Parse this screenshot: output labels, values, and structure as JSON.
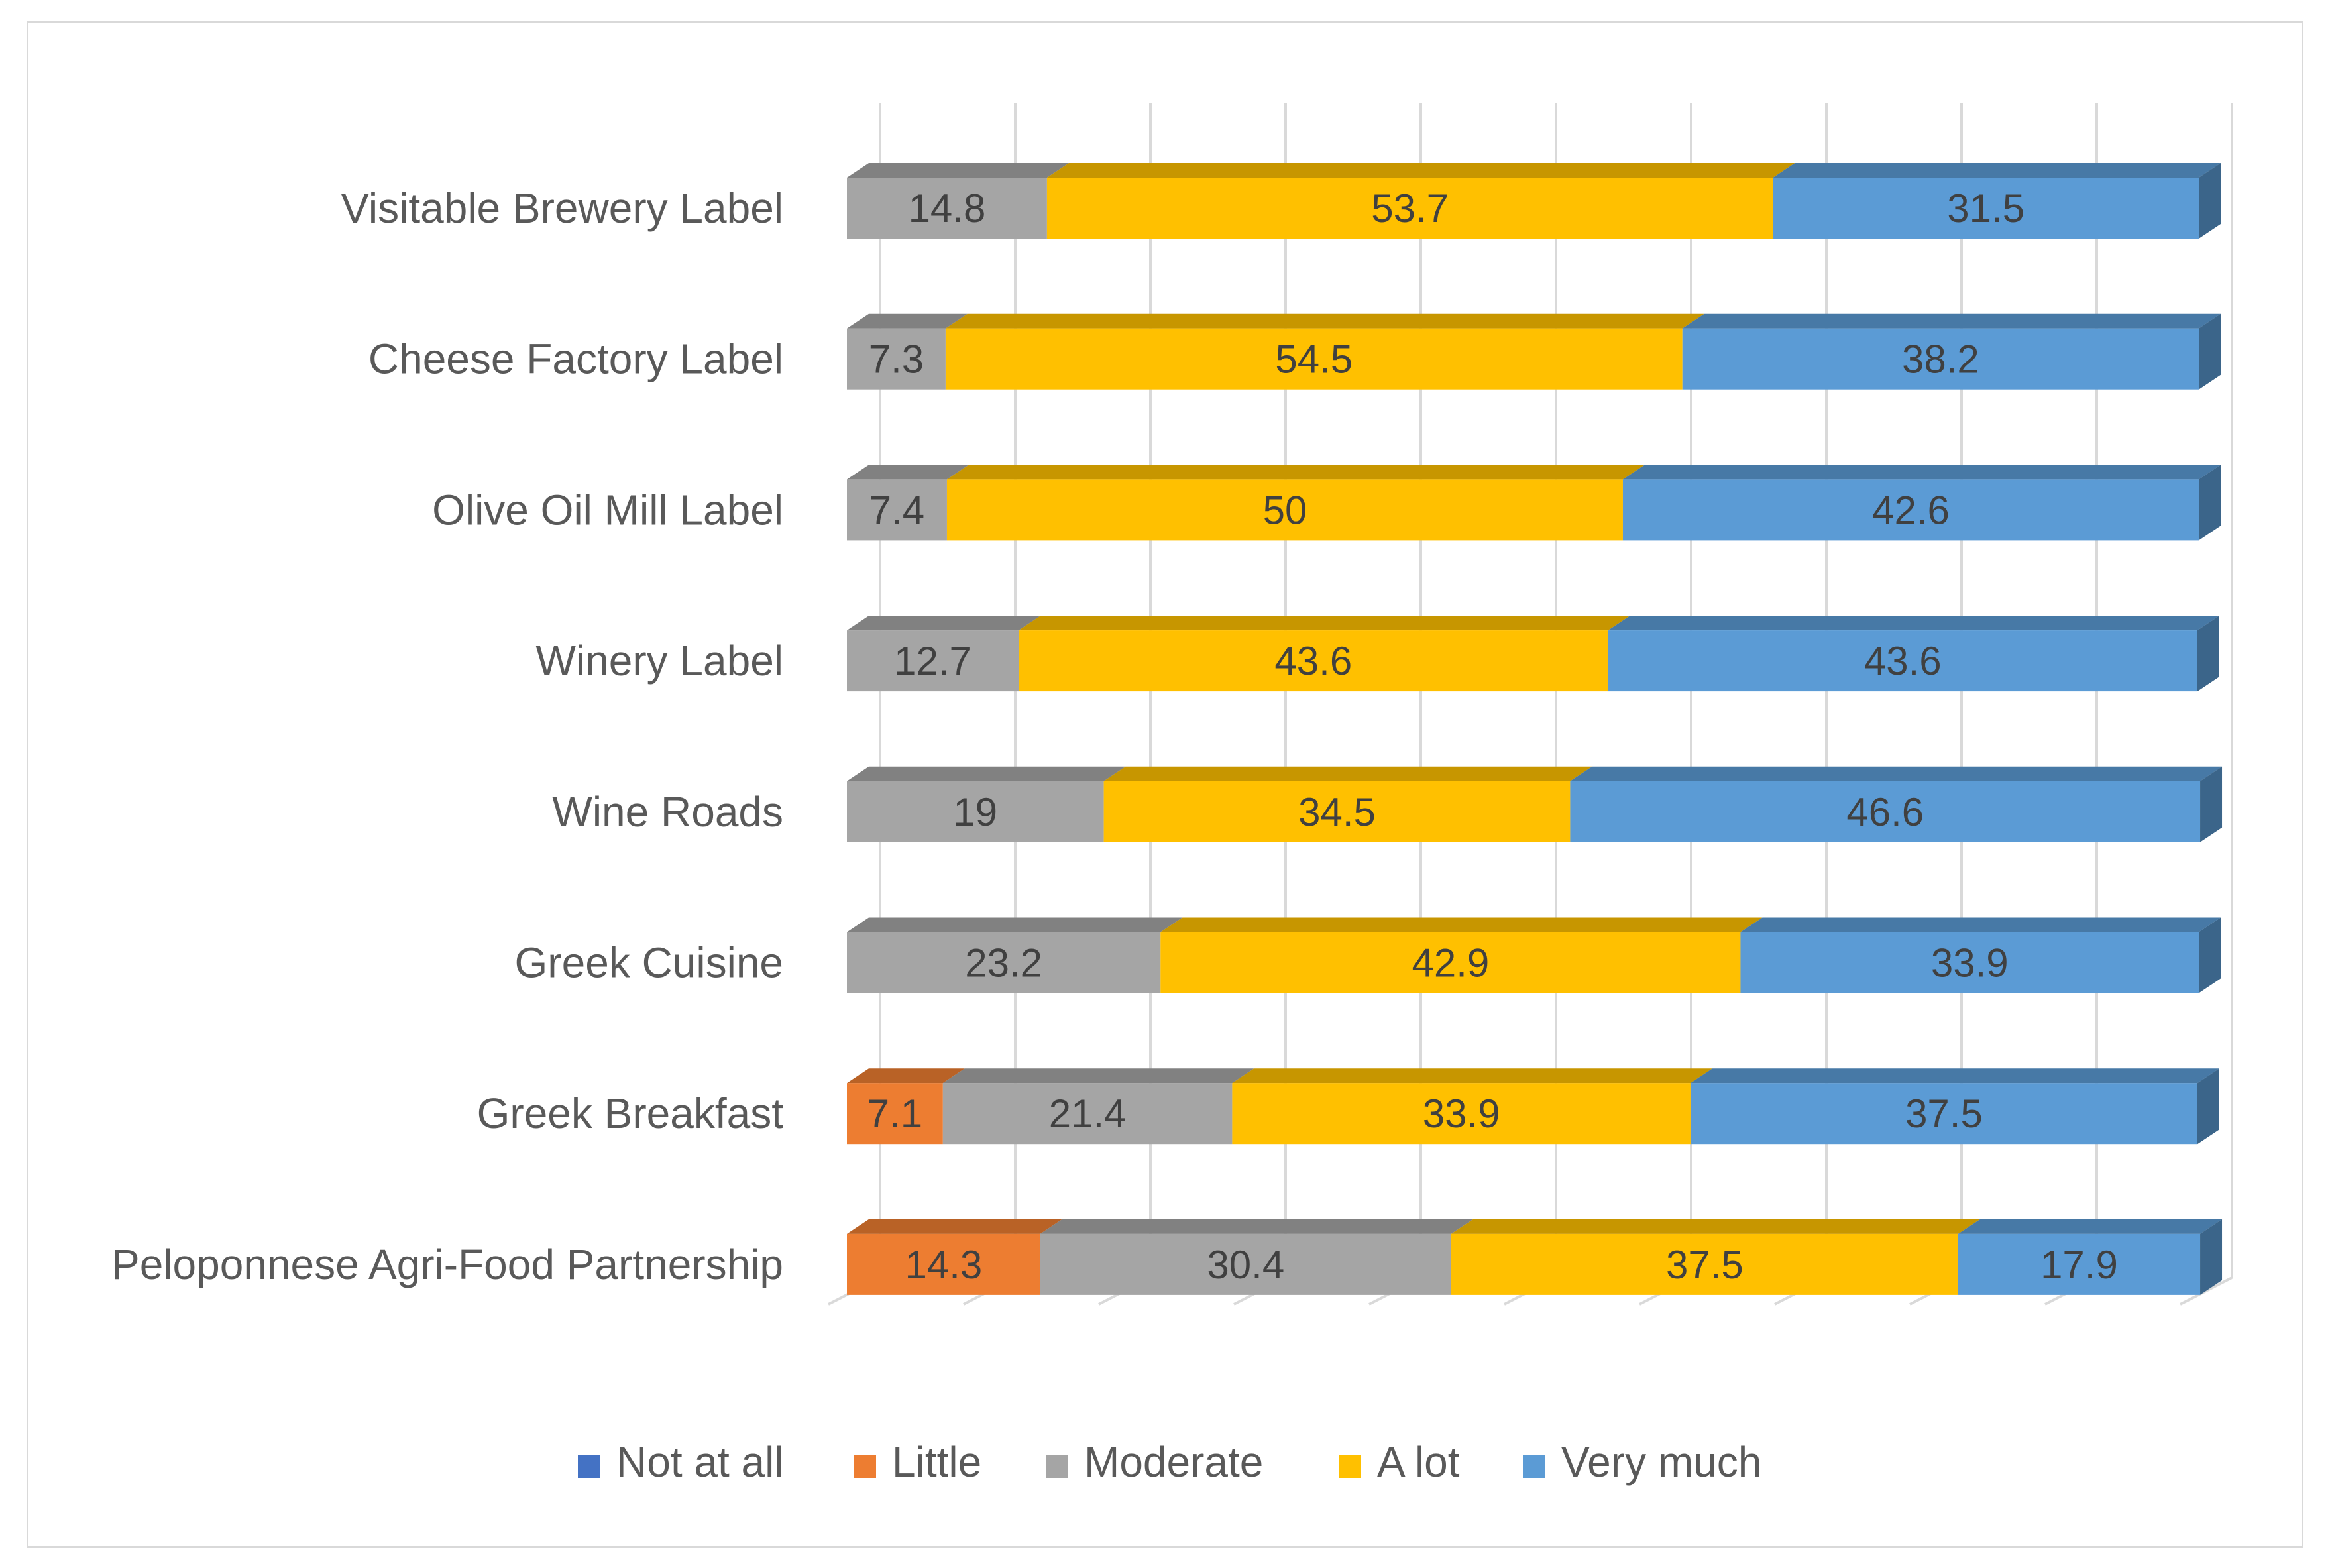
{
  "chart_data": {
    "type": "bar",
    "orientation": "horizontal",
    "stacked": true,
    "percent_stacked": true,
    "three_d": true,
    "title": "",
    "xlabel": "",
    "ylabel": "",
    "xlim": [
      0,
      100
    ],
    "grid": true,
    "legend_position": "bottom",
    "categories": [
      "Visitable Brewery Label",
      "Cheese Factory Label",
      "Olive Oil Mill Label",
      "Winery Label",
      "Wine Roads",
      "Greek Cuisine",
      "Greek Breakfast",
      "Peloponnese Agri-Food Partnership"
    ],
    "series": [
      {
        "name": "Not at all",
        "color": "#4472c4",
        "values": [
          0,
          0,
          0,
          0,
          0,
          0,
          0,
          0
        ],
        "labels": [
          "",
          "",
          "",
          "",
          "",
          "",
          "",
          ""
        ]
      },
      {
        "name": "Little",
        "color": "#ed7d31",
        "values": [
          0,
          0,
          0,
          0,
          0,
          0,
          7.1,
          14.3
        ],
        "labels": [
          "",
          "",
          "",
          "",
          "",
          "",
          "7.1",
          "14.3"
        ]
      },
      {
        "name": "Moderate",
        "color": "#a5a5a5",
        "values": [
          14.8,
          7.3,
          7.4,
          12.7,
          19,
          23.2,
          21.4,
          30.4
        ],
        "labels": [
          "14.8",
          "7.3",
          "7.4",
          "12.7",
          "19",
          "23.2",
          "21.4",
          "30.4"
        ]
      },
      {
        "name": "A lot",
        "color": "#ffc000",
        "values": [
          53.7,
          54.5,
          50,
          43.6,
          34.5,
          42.9,
          33.9,
          37.5
        ],
        "labels": [
          "53.7",
          "54.5",
          "50",
          "43.6",
          "34.5",
          "42.9",
          "33.9",
          "37.5"
        ]
      },
      {
        "name": "Very much",
        "color": "#5b9bd5",
        "values": [
          31.5,
          38.2,
          42.6,
          43.6,
          46.6,
          33.9,
          37.5,
          17.9
        ],
        "labels": [
          "31.5",
          "38.2",
          "42.6",
          "43.6",
          "46.6",
          "33.9",
          "37.5",
          "17.9"
        ]
      }
    ]
  }
}
